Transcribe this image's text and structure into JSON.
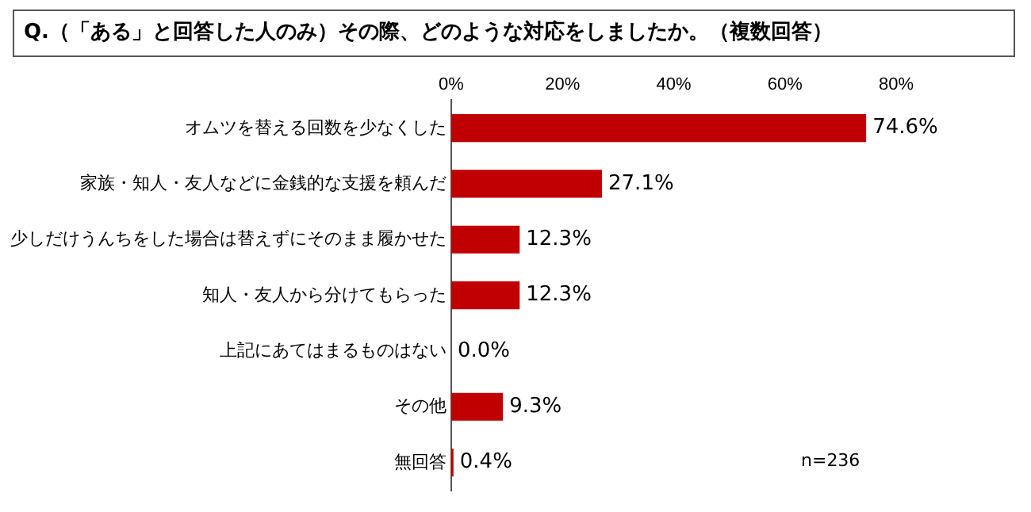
{
  "chart_data": {
    "type": "bar",
    "orientation": "horizontal",
    "title": "Q.（「ある」と回答した人のみ）その際、どのような対応をしましたか。（複数回答）",
    "categories": [
      "オムツを替える回数を少なくした",
      "家族・知人・友人などに金銭的な支援を頼んだ",
      "少しだけうんちをした場合は替えずにそのまま履かせた",
      "知人・友人から分けてもらった",
      "上記にあてはまるものはない",
      "その他",
      "無回答"
    ],
    "values": [
      74.6,
      27.1,
      12.3,
      12.3,
      0.0,
      9.3,
      0.4
    ],
    "value_labels": [
      "74.6%",
      "27.1%",
      "12.3%",
      "12.3%",
      "0.0%",
      "9.3%",
      "0.4%"
    ],
    "color": "#c00000",
    "xlim": [
      0,
      80
    ],
    "xticks": [
      {
        "value": 0,
        "label": "0%"
      },
      {
        "value": 20,
        "label": "20%"
      },
      {
        "value": 40,
        "label": "40%"
      },
      {
        "value": 60,
        "label": "60%"
      },
      {
        "value": 80,
        "label": "80%"
      }
    ],
    "grid": false,
    "annotations": [
      "n=236"
    ]
  }
}
